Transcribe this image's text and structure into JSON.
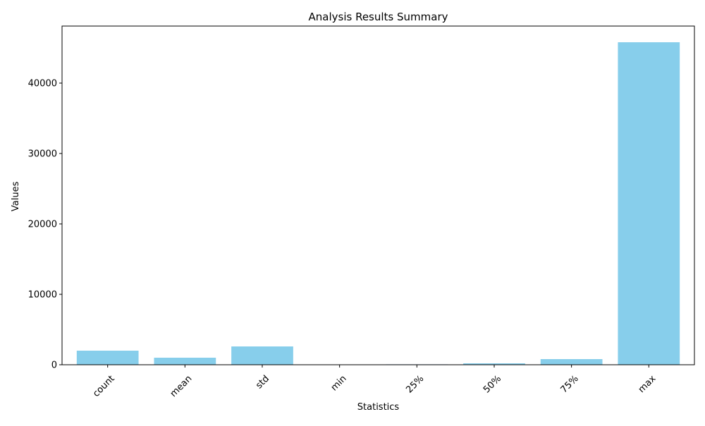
{
  "chart_data": {
    "type": "bar",
    "title": "Analysis Results Summary",
    "xlabel": "Statistics",
    "ylabel": "Values",
    "categories": [
      "count",
      "mean",
      "std",
      "min",
      "25%",
      "50%",
      "75%",
      "max"
    ],
    "values": [
      2000,
      1000,
      2600,
      5,
      60,
      200,
      800,
      45800
    ],
    "ylim": [
      0,
      48100
    ],
    "yticks": [
      0,
      10000,
      20000,
      30000,
      40000
    ],
    "bar_color": "#87CEEB",
    "xtick_rotation": 45,
    "grid": false,
    "legend": false
  }
}
